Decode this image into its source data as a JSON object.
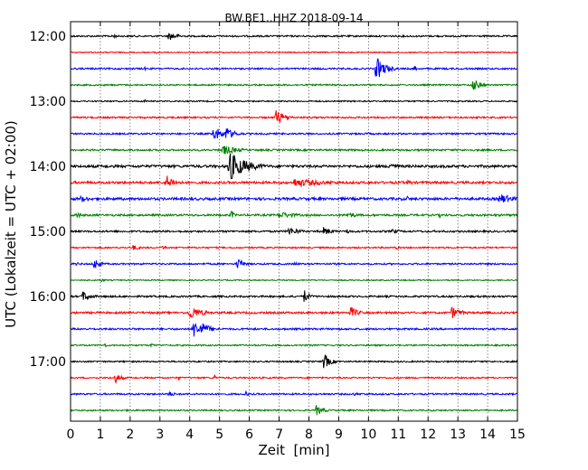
{
  "chart_data": {
    "type": "line",
    "title": "BW.BE1..HHZ 2018-09-14",
    "xlabel": "Zeit  [min]",
    "ylabel": "UTC (Lokalzeit = UTC + 02:00)",
    "xlim": [
      0,
      15
    ],
    "x_ticks": [
      "0",
      "1",
      "2",
      "3",
      "4",
      "5",
      "6",
      "7",
      "8",
      "9",
      "10",
      "11",
      "12",
      "13",
      "14",
      "15"
    ],
    "y_tick_labels": [
      "12:00",
      "13:00",
      "14:00",
      "15:00",
      "16:00",
      "17:00"
    ],
    "traces_per_hour": 4,
    "trace_minutes": 15,
    "grid": "vertical dashed every minute",
    "colors": [
      "#000000",
      "#ff0000",
      "#0000ff",
      "#008000"
    ],
    "traces": [
      {
        "start": "12:00",
        "color": "#000000",
        "noise": 0.9,
        "events": [
          [
            1.45,
            6,
            0.05
          ],
          [
            3.3,
            5,
            0.35
          ]
        ]
      },
      {
        "start": "12:15",
        "color": "#ff0000",
        "noise": 0.6,
        "events": [
          [
            2.9,
            4,
            0.03
          ]
        ]
      },
      {
        "start": "12:30",
        "color": "#0000ff",
        "noise": 0.9,
        "events": [
          [
            2.5,
            2,
            0.1
          ],
          [
            10.25,
            14,
            0.3
          ],
          [
            11.55,
            5,
            0.05
          ]
        ]
      },
      {
        "start": "12:45",
        "color": "#008000",
        "noise": 0.8,
        "events": [
          [
            13.5,
            7,
            0.25
          ]
        ]
      },
      {
        "start": "13:00",
        "color": "#000000",
        "noise": 0.7,
        "events": [
          [
            2.5,
            3,
            0.03
          ]
        ]
      },
      {
        "start": "13:15",
        "color": "#ff0000",
        "noise": 0.9,
        "events": [
          [
            6.9,
            9,
            0.3
          ]
        ]
      },
      {
        "start": "13:30",
        "color": "#0000ff",
        "noise": 0.9,
        "events": [
          [
            4.8,
            9,
            0.3
          ],
          [
            5.2,
            8,
            0.3
          ],
          [
            10.0,
            2,
            0.05
          ]
        ]
      },
      {
        "start": "13:45",
        "color": "#008000",
        "noise": 1.0,
        "events": [
          [
            5.1,
            6,
            0.5
          ]
        ]
      },
      {
        "start": "14:00",
        "color": "#000000",
        "noise": 1.4,
        "events": [
          [
            5.3,
            18,
            0.55
          ],
          [
            10.7,
            5,
            0.3
          ],
          [
            1.2,
            2,
            0.4
          ]
        ]
      },
      {
        "start": "14:15",
        "color": "#ff0000",
        "noise": 1.3,
        "events": [
          [
            3.2,
            9,
            0.3
          ],
          [
            7.5,
            5,
            1.2
          ],
          [
            11.3,
            3,
            0.3
          ]
        ]
      },
      {
        "start": "14:30",
        "color": "#0000ff",
        "noise": 1.4,
        "events": [
          [
            0.35,
            4,
            0.4
          ],
          [
            11.3,
            4,
            0.05
          ],
          [
            14.4,
            6,
            0.5
          ]
        ]
      },
      {
        "start": "14:45",
        "color": "#008000",
        "noise": 1.1,
        "events": [
          [
            0.2,
            4,
            0.2
          ],
          [
            5.4,
            5,
            0.1
          ],
          [
            7.0,
            4,
            0.6
          ],
          [
            9.3,
            4,
            0.3
          ],
          [
            12.4,
            3,
            0.05
          ]
        ]
      },
      {
        "start": "15:00",
        "color": "#000000",
        "noise": 1.0,
        "events": [
          [
            7.3,
            5,
            0.4
          ],
          [
            8.5,
            5,
            0.3
          ],
          [
            9.3,
            4,
            0.1
          ],
          [
            10.8,
            3,
            0.3
          ]
        ]
      },
      {
        "start": "15:15",
        "color": "#ff0000",
        "noise": 0.8,
        "events": [
          [
            2.1,
            3,
            0.3
          ],
          [
            3.1,
            3,
            0.1
          ],
          [
            10.9,
            2,
            0.2
          ]
        ]
      },
      {
        "start": "15:30",
        "color": "#0000ff",
        "noise": 0.9,
        "events": [
          [
            0.2,
            4,
            0.05
          ],
          [
            0.8,
            7,
            0.2
          ],
          [
            5.6,
            7,
            0.2
          ],
          [
            7.5,
            2,
            0.3
          ]
        ]
      },
      {
        "start": "15:45",
        "color": "#008000",
        "noise": 0.6,
        "events": [
          [
            1.0,
            2,
            0.2
          ]
        ]
      },
      {
        "start": "16:00",
        "color": "#000000",
        "noise": 1.0,
        "events": [
          [
            0.4,
            6,
            0.3
          ],
          [
            7.85,
            8,
            0.15
          ]
        ]
      },
      {
        "start": "16:15",
        "color": "#ff0000",
        "noise": 1.1,
        "events": [
          [
            4.0,
            8,
            0.4
          ],
          [
            9.4,
            7,
            0.25
          ],
          [
            12.8,
            7,
            0.3
          ]
        ]
      },
      {
        "start": "16:30",
        "color": "#0000ff",
        "noise": 1.0,
        "events": [
          [
            4.1,
            10,
            0.45
          ],
          [
            4.4,
            8,
            0.3
          ]
        ]
      },
      {
        "start": "16:45",
        "color": "#008000",
        "noise": 0.8,
        "events": [
          [
            1.15,
            4,
            0.05
          ],
          [
            2.7,
            3,
            0.1
          ]
        ]
      },
      {
        "start": "17:00",
        "color": "#000000",
        "noise": 0.8,
        "events": [
          [
            8.5,
            10,
            0.2
          ]
        ]
      },
      {
        "start": "17:15",
        "color": "#ff0000",
        "noise": 0.8,
        "events": [
          [
            1.5,
            6,
            0.2
          ],
          [
            3.65,
            4,
            0.03
          ],
          [
            4.85,
            5,
            0.03
          ]
        ]
      },
      {
        "start": "17:30",
        "color": "#0000ff",
        "noise": 0.9,
        "events": [
          [
            3.3,
            3,
            0.25
          ],
          [
            5.9,
            5,
            0.05
          ],
          [
            9.5,
            2,
            0.3
          ]
        ]
      },
      {
        "start": "17:45",
        "color": "#008000",
        "noise": 0.8,
        "events": [
          [
            8.25,
            6,
            0.25
          ]
        ]
      }
    ]
  }
}
